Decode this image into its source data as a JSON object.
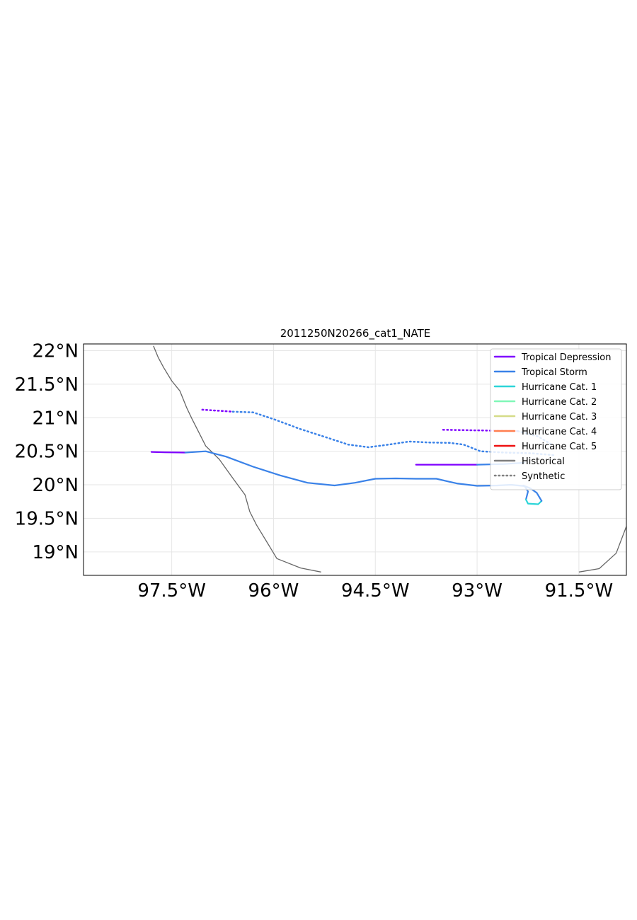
{
  "chart_data": {
    "type": "line",
    "title": "2011250N20266_cat1_NATE",
    "xlabel": "",
    "ylabel": "",
    "xlim": [
      -98.8,
      -90.8
    ],
    "ylim": [
      18.65,
      22.1
    ],
    "x_ticks": [
      {
        "value": -97.5,
        "label": "97.5°W"
      },
      {
        "value": -96.0,
        "label": "96°W"
      },
      {
        "value": -94.5,
        "label": "94.5°W"
      },
      {
        "value": -93.0,
        "label": "93°W"
      },
      {
        "value": -91.5,
        "label": "91.5°W"
      }
    ],
    "y_ticks": [
      {
        "value": 22.0,
        "label": "22°N"
      },
      {
        "value": 21.5,
        "label": "21.5°N"
      },
      {
        "value": 21.0,
        "label": "21°N"
      },
      {
        "value": 20.5,
        "label": "20.5°N"
      },
      {
        "value": 20.0,
        "label": "20°N"
      },
      {
        "value": 19.5,
        "label": "19.5°N"
      },
      {
        "value": 19.0,
        "label": "19°N"
      }
    ],
    "grid": true,
    "legend_position": "top-right",
    "legend": [
      {
        "label": "Tropical Depression",
        "color": "#7f00ff",
        "style": "solid"
      },
      {
        "label": "Tropical Storm",
        "color": "#3a82e8",
        "style": "solid"
      },
      {
        "label": "Hurricane Cat. 1",
        "color": "#2dd5d8",
        "style": "solid"
      },
      {
        "label": "Hurricane Cat. 2",
        "color": "#80f7b8",
        "style": "solid"
      },
      {
        "label": "Hurricane Cat. 3",
        "color": "#d5dc88",
        "style": "solid"
      },
      {
        "label": "Hurricane Cat. 4",
        "color": "#ff7f50",
        "style": "solid"
      },
      {
        "label": "Hurricane Cat. 5",
        "color": "#ee1111",
        "style": "solid"
      },
      {
        "label": "Historical",
        "color": "#7f7f7f",
        "style": "solid"
      },
      {
        "label": "Synthetic",
        "color": "#7f7f7f",
        "style": "dotted"
      }
    ],
    "series": [
      {
        "style": "solid",
        "segments": [
          {
            "color": "#7f00ff",
            "points": [
              [
                -97.8,
                20.49
              ],
              [
                -97.6,
                20.485
              ],
              [
                -97.3,
                20.48
              ]
            ]
          },
          {
            "color": "#3a82e8",
            "points": [
              [
                -97.3,
                20.48
              ],
              [
                -97.0,
                20.5
              ],
              [
                -96.7,
                20.42
              ],
              [
                -96.3,
                20.27
              ],
              [
                -95.9,
                20.14
              ],
              [
                -95.5,
                20.03
              ],
              [
                -95.1,
                19.99
              ],
              [
                -94.8,
                20.03
              ],
              [
                -94.5,
                20.09
              ],
              [
                -94.2,
                20.095
              ],
              [
                -93.9,
                20.09
              ],
              [
                -93.6,
                20.09
              ],
              [
                -93.3,
                20.02
              ],
              [
                -93.0,
                19.985
              ],
              [
                -92.7,
                19.99
              ],
              [
                -92.5,
                20.0
              ],
              [
                -92.3,
                19.98
              ],
              [
                -92.25,
                19.9
              ],
              [
                -92.28,
                19.78
              ]
            ]
          },
          {
            "color": "#2dd5d8",
            "points": [
              [
                -92.28,
                19.78
              ],
              [
                -92.25,
                19.72
              ],
              [
                -92.1,
                19.71
              ],
              [
                -92.05,
                19.76
              ]
            ]
          },
          {
            "color": "#3a82e8",
            "points": [
              [
                -92.05,
                19.76
              ],
              [
                -92.12,
                19.88
              ],
              [
                -92.22,
                19.95
              ],
              [
                -92.32,
                19.99
              ]
            ]
          }
        ]
      },
      {
        "style": "dotted",
        "segments": [
          {
            "color": "#7f00ff",
            "points": [
              [
                -97.05,
                21.12
              ],
              [
                -96.6,
                21.09
              ]
            ]
          },
          {
            "color": "#3a82e8",
            "points": [
              [
                -96.6,
                21.09
              ],
              [
                -96.3,
                21.08
              ],
              [
                -96.0,
                20.98
              ],
              [
                -95.6,
                20.83
              ],
              [
                -95.2,
                20.7
              ],
              [
                -94.9,
                20.6
              ],
              [
                -94.6,
                20.56
              ],
              [
                -94.3,
                20.6
              ],
              [
                -94.0,
                20.645
              ],
              [
                -93.7,
                20.63
              ],
              [
                -93.4,
                20.625
              ],
              [
                -93.2,
                20.6
              ],
              [
                -92.95,
                20.5
              ],
              [
                -92.6,
                20.48
              ],
              [
                -92.2,
                20.47
              ],
              [
                -91.85,
                20.44
              ]
            ]
          }
        ]
      },
      {
        "style": "dotted",
        "segments": [
          {
            "color": "#7f00ff",
            "points": [
              [
                -93.5,
                20.82
              ],
              [
                -92.9,
                20.81
              ],
              [
                -92.4,
                20.8
              ]
            ]
          },
          {
            "color": "#3a82e8",
            "points": [
              [
                -92.4,
                20.8
              ],
              [
                -92.1,
                20.72
              ],
              [
                -91.9,
                20.6
              ]
            ]
          }
        ]
      },
      {
        "style": "solid",
        "segments": [
          {
            "color": "#7f00ff",
            "points": [
              [
                -93.9,
                20.3
              ],
              [
                -93.5,
                20.3
              ],
              [
                -93.0,
                20.3
              ]
            ]
          },
          {
            "color": "#3a82e8",
            "points": [
              [
                -93.0,
                20.3
              ],
              [
                -92.6,
                20.31
              ],
              [
                -92.3,
                20.33
              ]
            ]
          }
        ]
      }
    ],
    "coastline": [
      [
        [
          -97.77,
          22.07
        ],
        [
          -97.7,
          21.9
        ],
        [
          -97.62,
          21.75
        ],
        [
          -97.5,
          21.55
        ],
        [
          -97.38,
          21.4
        ],
        [
          -97.28,
          21.15
        ],
        [
          -97.2,
          20.98
        ],
        [
          -97.1,
          20.78
        ],
        [
          -97.0,
          20.58
        ],
        [
          -96.8,
          20.38
        ],
        [
          -96.6,
          20.1
        ],
        [
          -96.42,
          19.85
        ],
        [
          -96.35,
          19.6
        ],
        [
          -96.25,
          19.4
        ],
        [
          -96.1,
          19.15
        ],
        [
          -95.95,
          18.9
        ],
        [
          -95.6,
          18.76
        ],
        [
          -95.3,
          18.7
        ]
      ],
      [
        [
          -91.5,
          18.7
        ],
        [
          -91.2,
          18.75
        ],
        [
          -90.95,
          18.98
        ],
        [
          -90.8,
          19.38
        ]
      ]
    ]
  }
}
